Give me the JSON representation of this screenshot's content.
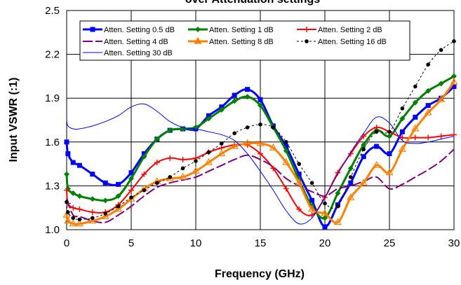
{
  "chart_data": {
    "type": "line",
    "title": "over Attenuation settings",
    "xlabel": "Frequency (GHz)",
    "ylabel": "Input VSWR (:1)",
    "xlim": [
      0,
      30
    ],
    "ylim": [
      1.0,
      2.5
    ],
    "x_ticks": [
      "0",
      "5",
      "10",
      "15",
      "20",
      "25",
      "30"
    ],
    "y_ticks": [
      "1.0",
      "1.3",
      "1.6",
      "1.9",
      "2.2",
      "2.5"
    ],
    "grid": true,
    "legend_position": "top-left",
    "series": [
      {
        "name": "Atten. Setting 0.5 dB",
        "color": "#0000ff",
        "marker": "square",
        "line_width": 3,
        "x": [
          0,
          0.1,
          0.5,
          1,
          2,
          3,
          4,
          5,
          6,
          7,
          8,
          9,
          10,
          11,
          12,
          13,
          14,
          15,
          16,
          17,
          18,
          19,
          20,
          21,
          22,
          23,
          24,
          25,
          26,
          27,
          28,
          29,
          30
        ],
        "y": [
          1.6,
          1.52,
          1.46,
          1.44,
          1.38,
          1.32,
          1.31,
          1.39,
          1.52,
          1.62,
          1.68,
          1.69,
          1.69,
          1.78,
          1.84,
          1.92,
          1.96,
          1.89,
          1.71,
          1.57,
          1.38,
          1.2,
          1.02,
          1.17,
          1.32,
          1.5,
          1.57,
          1.52,
          1.67,
          1.77,
          1.85,
          1.9,
          1.98
        ]
      },
      {
        "name": "Atten. Setting 1 dB",
        "color": "#008000",
        "marker": "diamond",
        "line_width": 3,
        "x": [
          0,
          0.1,
          0.5,
          1,
          2,
          3,
          4,
          5,
          6,
          7,
          8,
          9,
          10,
          11,
          12,
          13,
          14,
          15,
          16,
          17,
          18,
          19,
          20,
          21,
          22,
          23,
          24,
          25,
          26,
          27,
          28,
          29,
          30
        ],
        "y": [
          1.38,
          1.28,
          1.25,
          1.23,
          1.21,
          1.2,
          1.23,
          1.35,
          1.5,
          1.62,
          1.68,
          1.69,
          1.7,
          1.76,
          1.82,
          1.88,
          1.91,
          1.85,
          1.7,
          1.54,
          1.34,
          1.16,
          1.08,
          1.25,
          1.42,
          1.58,
          1.68,
          1.64,
          1.76,
          1.87,
          1.95,
          2.0,
          2.05
        ]
      },
      {
        "name": "Atten. Setting 2 dB",
        "color": "#ff0000",
        "marker": "plus",
        "line_width": 2,
        "x": [
          0,
          0.1,
          0.5,
          1,
          2,
          3,
          4,
          5,
          6,
          7,
          8,
          9,
          10,
          11,
          12,
          13,
          14,
          15,
          16,
          17,
          18,
          19,
          20,
          21,
          22,
          23,
          24,
          25,
          26,
          27,
          28,
          29,
          30
        ],
        "y": [
          1.27,
          1.18,
          1.15,
          1.14,
          1.12,
          1.12,
          1.17,
          1.27,
          1.38,
          1.46,
          1.49,
          1.48,
          1.49,
          1.53,
          1.56,
          1.58,
          1.58,
          1.52,
          1.42,
          1.28,
          1.14,
          1.1,
          1.22,
          1.39,
          1.52,
          1.64,
          1.7,
          1.67,
          1.63,
          1.63,
          1.63,
          1.64,
          1.65
        ]
      },
      {
        "name": "Atten. Setting 4 dB",
        "color": "#800080",
        "marker": "none",
        "line_width": 2,
        "dash": "14 4",
        "x": [
          0,
          0.5,
          1,
          2,
          3,
          4,
          5,
          6,
          7,
          8,
          9,
          10,
          11,
          12,
          13,
          14,
          15,
          16,
          17,
          18,
          19,
          20,
          21,
          22,
          23,
          24,
          25,
          26,
          27,
          28,
          29,
          30
        ],
        "y": [
          1.21,
          1.1,
          1.09,
          1.06,
          1.05,
          1.1,
          1.16,
          1.23,
          1.29,
          1.32,
          1.34,
          1.36,
          1.4,
          1.44,
          1.48,
          1.51,
          1.48,
          1.43,
          1.35,
          1.3,
          1.26,
          1.23,
          1.28,
          1.3,
          1.33,
          1.36,
          1.28,
          1.31,
          1.36,
          1.41,
          1.47,
          1.55
        ]
      },
      {
        "name": "Atten. Setting 8 dB",
        "color": "#ff8000",
        "marker": "triangle",
        "line_width": 3,
        "x": [
          0,
          0.1,
          0.5,
          1,
          2,
          3,
          4,
          5,
          6,
          7,
          8,
          9,
          10,
          11,
          12,
          13,
          14,
          15,
          16,
          17,
          18,
          19,
          20,
          21,
          22,
          23,
          24,
          25,
          26,
          27,
          28,
          29,
          30
        ],
        "y": [
          1.1,
          1.06,
          1.04,
          1.04,
          1.06,
          1.09,
          1.14,
          1.21,
          1.28,
          1.33,
          1.35,
          1.36,
          1.4,
          1.46,
          1.52,
          1.57,
          1.59,
          1.59,
          1.56,
          1.46,
          1.32,
          1.14,
          1.11,
          1.05,
          1.22,
          1.32,
          1.44,
          1.39,
          1.55,
          1.69,
          1.8,
          1.89,
          2.01
        ]
      },
      {
        "name": "Atten. Setting 16 dB",
        "color": "#000000",
        "marker": "circle",
        "line_width": 1,
        "dash": "3 3",
        "x": [
          0,
          0.1,
          0.5,
          1,
          2,
          3,
          4,
          5,
          6,
          7,
          8,
          9,
          10,
          11,
          12,
          13,
          14,
          15,
          16,
          17,
          18,
          19,
          20,
          21,
          22,
          23,
          24,
          25,
          26,
          27,
          28,
          29,
          30
        ],
        "y": [
          1.19,
          1.12,
          1.08,
          1.07,
          1.08,
          1.11,
          1.16,
          1.22,
          1.27,
          1.32,
          1.36,
          1.42,
          1.47,
          1.53,
          1.59,
          1.66,
          1.7,
          1.72,
          1.7,
          1.6,
          1.45,
          1.32,
          1.18,
          1.16,
          1.36,
          1.55,
          1.67,
          1.67,
          1.83,
          1.98,
          2.13,
          2.23,
          2.29
        ]
      },
      {
        "name": "Atten. Setting 30 dB",
        "color": "#0000ff",
        "marker": "none",
        "line_width": 1,
        "x": [
          0,
          0.1,
          0.5,
          1,
          2,
          3,
          4,
          5,
          6,
          7,
          8,
          9,
          10,
          11,
          12,
          13,
          14,
          15,
          16,
          17,
          18,
          19,
          20,
          21,
          22,
          23,
          24,
          25,
          26,
          27,
          28,
          29,
          30
        ],
        "y": [
          1.75,
          1.71,
          1.69,
          1.69,
          1.71,
          1.74,
          1.78,
          1.84,
          1.86,
          1.81,
          1.74,
          1.7,
          1.69,
          1.67,
          1.65,
          1.61,
          1.52,
          1.4,
          1.27,
          1.13,
          1.04,
          1.08,
          1.22,
          1.38,
          1.53,
          1.66,
          1.77,
          1.73,
          1.61,
          1.59,
          1.6,
          1.62,
          1.64
        ]
      }
    ]
  }
}
